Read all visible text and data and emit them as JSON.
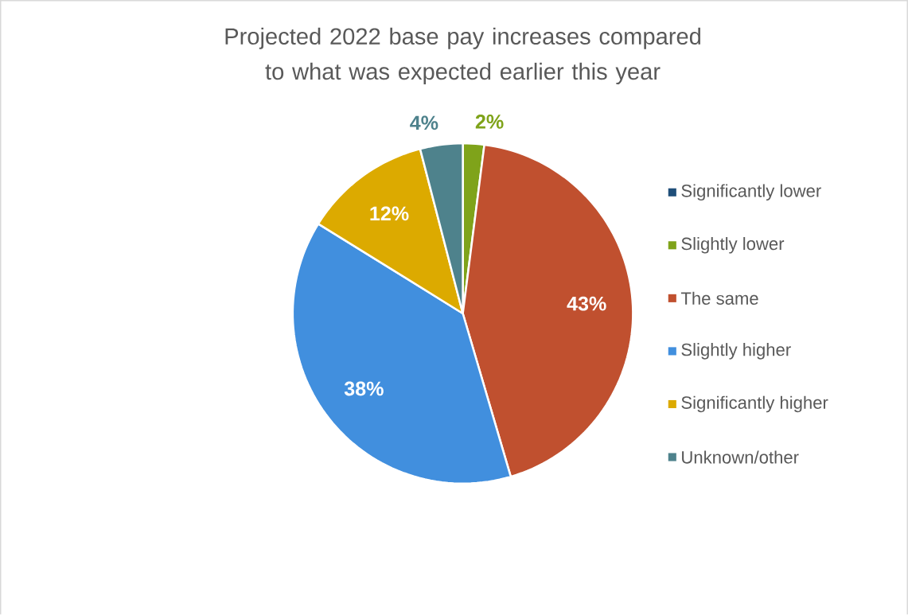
{
  "chart_data": {
    "type": "pie",
    "title": "Projected 2022 base pay increases compared to what was expected earlier this year",
    "categories": [
      "Significantly lower",
      "Slightly lower",
      "The same",
      "Slightly higher",
      "Significantly higher",
      "Unknown/other"
    ],
    "values": [
      0,
      2,
      43,
      38,
      12,
      4
    ],
    "colors": [
      "#1f4e79",
      "#7fa31a",
      "#c0502f",
      "#418fde",
      "#dcaa00",
      "#4e828c"
    ],
    "value_labels": [
      null,
      "2%",
      "43%",
      "38%",
      "12%",
      "4%"
    ],
    "legend": "right"
  }
}
